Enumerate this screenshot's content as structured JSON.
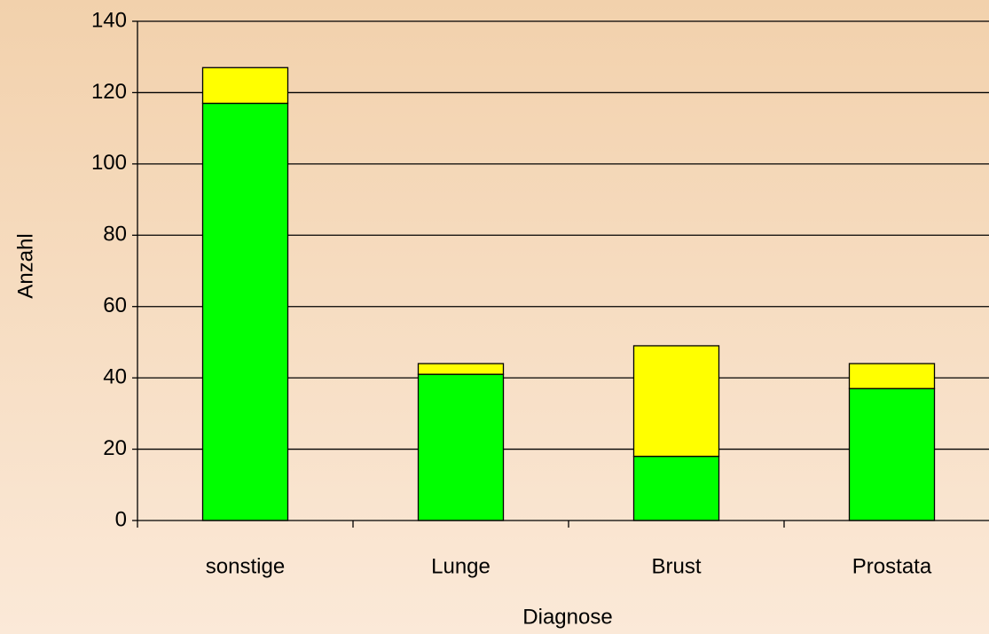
{
  "chart_data": {
    "type": "stacked_bar",
    "x_label": "Diagnose",
    "y_label": "Anzahl",
    "categories": [
      "sonstige",
      "Lunge",
      "Brust",
      "Prostata"
    ],
    "series": [
      {
        "color": "#00ff00",
        "values": [
          117,
          41,
          18,
          37
        ]
      },
      {
        "color": "#ffff00",
        "values": [
          10,
          3,
          31,
          7
        ]
      }
    ],
    "ylim": [
      0,
      140
    ],
    "yticks": [
      0,
      20,
      40,
      60,
      80,
      100,
      120,
      140
    ],
    "grid": true
  }
}
